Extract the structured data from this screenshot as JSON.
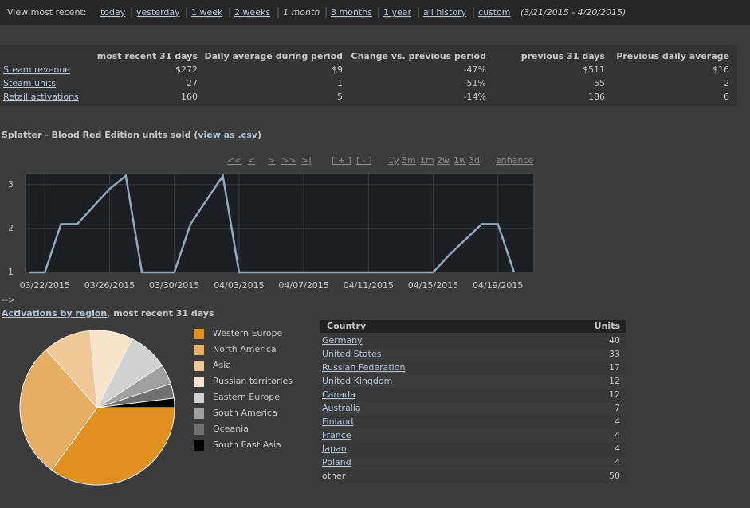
{
  "nav": {
    "label": "View most recent:",
    "links": [
      "today",
      "yesterday",
      "1 week",
      "2 weeks",
      "1 month",
      "3 months",
      "1 year",
      "all history",
      "custom"
    ],
    "range": "(3/21/2015 - 4/20/2015)"
  },
  "summary": {
    "headers": [
      "most recent 31 days",
      "Daily average during period",
      "Change vs. previous period",
      "previous 31 days",
      "Previous daily average"
    ],
    "rows": [
      {
        "label": "Steam revenue",
        "cells": [
          "$272",
          "$9",
          "-47%",
          "$511",
          "$16"
        ]
      },
      {
        "label": "Steam units",
        "cells": [
          "27",
          "1",
          "-51%",
          "55",
          "2"
        ]
      },
      {
        "label": "Retail activations",
        "cells": [
          "160",
          "5",
          "-14%",
          "186",
          "6"
        ]
      }
    ]
  },
  "sales_section": {
    "title": "Splatter - Blood Red Edition units sold (",
    "link": "view as .csv",
    "title_end": ")"
  },
  "controls": {
    "nav": [
      "<<",
      "<",
      ">",
      ">>",
      ">|"
    ],
    "zoom": [
      "[ + ]",
      "[ - ]"
    ],
    "ranges": [
      "1y",
      "3m",
      "1m",
      "2w",
      "1w",
      "3d"
    ],
    "enhance": "enhance"
  },
  "arrow_text": "-->",
  "region": {
    "title_link": "Activations by region",
    "title_rest": ", most recent 31 days",
    "table": {
      "headers": [
        "Country",
        "Units"
      ],
      "rows": [
        [
          "Germany",
          40
        ],
        [
          "United States",
          33
        ],
        [
          "Russian Federation",
          17
        ],
        [
          "United Kingdom",
          12
        ],
        [
          "Canada",
          12
        ],
        [
          "Australia",
          7
        ],
        [
          "Finland",
          4
        ],
        [
          "France",
          4
        ],
        [
          "Japan",
          4
        ],
        [
          "Poland",
          4
        ],
        [
          "other",
          50
        ]
      ]
    }
  },
  "chart_data": [
    {
      "type": "line",
      "x": [
        "03/21/2015",
        "03/22/2015",
        "03/23/2015",
        "03/24/2015",
        "03/25/2015",
        "03/26/2015",
        "03/27/2015",
        "03/28/2015",
        "03/29/2015",
        "03/30/2015",
        "03/31/2015",
        "04/01/2015",
        "04/02/2015",
        "04/03/2015",
        "04/04/2015",
        "04/05/2015",
        "04/06/2015",
        "04/07/2015",
        "04/08/2015",
        "04/09/2015",
        "04/10/2015",
        "04/11/2015",
        "04/12/2015",
        "04/13/2015",
        "04/14/2015",
        "04/15/2015",
        "04/16/2015",
        "04/17/2015",
        "04/18/2015",
        "04/19/2015",
        "04/20/2015"
      ],
      "values": [
        1,
        1,
        2.1,
        2.1,
        2.5,
        2.9,
        3.2,
        1,
        1,
        1,
        2.1,
        2.65,
        3.2,
        1,
        1,
        1,
        1,
        1,
        1,
        1,
        1,
        1,
        1,
        1,
        1,
        1,
        1.4,
        1.75,
        2.1,
        2.1,
        1
      ],
      "color": "#8fa9bf",
      "ylim": [
        1,
        3.25
      ],
      "yticks": [
        1,
        2,
        3
      ],
      "xticks": [
        "03/22/2015",
        "03/26/2015",
        "03/30/2015",
        "04/03/2015",
        "04/07/2015",
        "04/11/2015",
        "04/15/2015",
        "04/19/2015"
      ],
      "grid": true
    },
    {
      "type": "pie",
      "categories": [
        "Western Europe",
        "North America",
        "Asia",
        "Russian territories",
        "Eastern Europe",
        "South America",
        "Oceania",
        "South East Asia"
      ],
      "values": [
        35,
        28.5,
        10,
        9,
        8.3,
        4.2,
        3,
        2
      ],
      "colors": [
        "#e0901e",
        "#e6ae62",
        "#f0c898",
        "#f8e4cc",
        "#d2d2d2",
        "#a0a0a0",
        "#707070",
        "#000000"
      ]
    }
  ]
}
